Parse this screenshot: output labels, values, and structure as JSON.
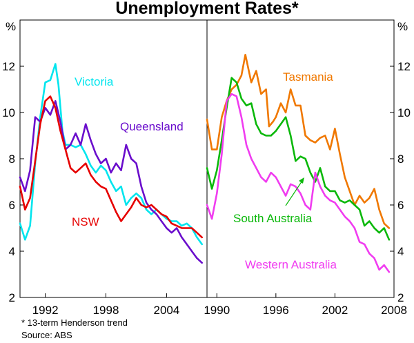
{
  "chart_data": {
    "type": "line",
    "title": "Unemployment Rates*",
    "ylabel_left": "%",
    "ylabel_right": "%",
    "yticks": [
      "2",
      "4",
      "6",
      "8",
      "10",
      "12"
    ],
    "ylim": [
      2,
      14
    ],
    "grid": false,
    "footnote": "*   13-term Henderson trend",
    "source": "Source: ABS",
    "colors": {
      "Victoria": "#00e5ee",
      "Queensland": "#6a0dcc",
      "NSW": "#e60000",
      "Tasmania": "#f07800",
      "South Australia": "#0ab80a",
      "Western Australia": "#f03cf0"
    },
    "panels": [
      {
        "xlim": [
          1989.5,
          2008.0
        ],
        "xticks": [
          "1992",
          "1998",
          "2004"
        ],
        "series": [
          {
            "name": "Victoria",
            "label": "Victoria",
            "label_color": "#00e5ee",
            "x": [
              1989.5,
              1990.0,
              1990.5,
              1991.0,
              1991.5,
              1992.0,
              1992.5,
              1993.0,
              1993.3,
              1993.7,
              1994.0,
              1994.5,
              1995.0,
              1995.5,
              1996.0,
              1996.5,
              1997.0,
              1997.5,
              1998.0,
              1998.5,
              1999.0,
              1999.5,
              2000.0,
              2000.5,
              2001.0,
              2001.5,
              2002.0,
              2002.5,
              2003.0,
              2003.5,
              2004.0,
              2004.5,
              2005.0,
              2005.5,
              2006.0,
              2006.5,
              2007.0,
              2007.5
            ],
            "y": [
              5.2,
              4.5,
              5.1,
              7.8,
              9.8,
              11.3,
              11.4,
              12.1,
              11.2,
              9.2,
              8.6,
              8.6,
              8.5,
              8.6,
              8.2,
              7.7,
              7.4,
              7.7,
              7.5,
              7.0,
              6.6,
              6.8,
              6.0,
              6.3,
              6.5,
              6.3,
              5.8,
              5.6,
              5.8,
              5.6,
              5.4,
              5.3,
              5.3,
              5.1,
              5.2,
              5.0,
              4.6,
              4.3
            ]
          },
          {
            "name": "Queensland",
            "label": "Queensland",
            "label_color": "#6a0dcc",
            "x": [
              1989.5,
              1990.0,
              1990.5,
              1991.0,
              1991.5,
              1992.0,
              1992.5,
              1993.0,
              1993.5,
              1994.0,
              1994.5,
              1995.0,
              1995.5,
              1996.0,
              1996.5,
              1997.0,
              1997.5,
              1998.0,
              1998.5,
              1999.0,
              1999.5,
              2000.0,
              2000.5,
              2001.0,
              2001.5,
              2002.0,
              2002.5,
              2003.0,
              2003.5,
              2004.0,
              2004.5,
              2005.0,
              2005.5,
              2006.0,
              2006.5,
              2007.0,
              2007.5
            ],
            "y": [
              7.2,
              6.6,
              7.5,
              9.8,
              9.6,
              10.2,
              9.9,
              10.5,
              9.6,
              8.4,
              8.6,
              9.1,
              8.6,
              9.5,
              8.8,
              8.2,
              7.8,
              8.0,
              7.4,
              7.8,
              7.5,
              8.6,
              8.0,
              7.8,
              6.8,
              6.1,
              5.8,
              5.6,
              5.3,
              5.0,
              4.8,
              5.0,
              4.6,
              4.3,
              4.0,
              3.7,
              3.5
            ]
          },
          {
            "name": "NSW",
            "label": "NSW",
            "label_color": "#e60000",
            "x": [
              1989.5,
              1990.0,
              1990.5,
              1991.0,
              1991.5,
              1992.0,
              1992.5,
              1993.0,
              1993.5,
              1994.0,
              1994.5,
              1995.0,
              1995.5,
              1996.0,
              1996.5,
              1997.0,
              1997.5,
              1998.0,
              1998.5,
              1999.0,
              1999.5,
              2000.0,
              2000.5,
              2001.0,
              2001.5,
              2002.0,
              2002.5,
              2003.0,
              2003.5,
              2004.0,
              2004.5,
              2005.0,
              2005.5,
              2006.0,
              2006.5,
              2007.0,
              2007.5
            ],
            "y": [
              6.8,
              5.8,
              6.3,
              7.9,
              9.5,
              10.5,
              10.7,
              10.2,
              9.2,
              8.4,
              7.6,
              7.4,
              7.6,
              7.8,
              7.3,
              7.0,
              6.8,
              6.7,
              6.2,
              5.7,
              5.3,
              5.6,
              5.9,
              6.3,
              6.0,
              5.9,
              6.0,
              5.8,
              5.6,
              5.5,
              5.2,
              5.1,
              5.0,
              5.0,
              5.0,
              4.8,
              4.6
            ]
          }
        ]
      },
      {
        "xlim": [
          1989.0,
          2008.0
        ],
        "xticks": [
          "1990",
          "1996",
          "2002",
          "2008"
        ],
        "series": [
          {
            "name": "Tasmania",
            "label": "Tasmania",
            "label_color": "#f07800",
            "x": [
              1989.0,
              1989.5,
              1990.0,
              1990.5,
              1991.0,
              1991.5,
              1992.0,
              1992.5,
              1992.9,
              1993.5,
              1994.0,
              1994.5,
              1995.0,
              1995.3,
              1995.7,
              1996.0,
              1996.5,
              1997.0,
              1997.5,
              1998.0,
              1998.5,
              1999.0,
              1999.5,
              2000.0,
              2000.5,
              2001.0,
              2001.5,
              2002.0,
              2002.5,
              2003.0,
              2003.5,
              2004.0,
              2004.5,
              2005.0,
              2005.5,
              2006.0,
              2006.5,
              2007.0,
              2007.5
            ],
            "y": [
              9.7,
              8.4,
              8.4,
              9.8,
              10.5,
              11.0,
              11.2,
              11.6,
              12.5,
              11.3,
              11.8,
              10.8,
              11.0,
              9.4,
              9.6,
              9.8,
              10.4,
              10.0,
              11.0,
              10.3,
              10.3,
              9.0,
              8.8,
              8.7,
              8.9,
              9.0,
              8.4,
              9.3,
              8.2,
              7.2,
              6.6,
              6.0,
              6.4,
              6.1,
              6.3,
              6.7,
              5.8,
              5.2,
              5.0
            ]
          },
          {
            "name": "South Australia",
            "label": "South Australia",
            "label_color": "#0ab80a",
            "x": [
              1989.0,
              1989.5,
              1990.0,
              1990.5,
              1991.0,
              1991.5,
              1992.0,
              1992.5,
              1993.0,
              1993.5,
              1994.0,
              1994.5,
              1995.0,
              1995.5,
              1996.0,
              1996.5,
              1997.0,
              1997.5,
              1998.0,
              1998.5,
              1999.0,
              1999.5,
              2000.0,
              2000.5,
              2001.0,
              2001.5,
              2002.0,
              2002.5,
              2003.0,
              2003.5,
              2004.0,
              2004.5,
              2005.0,
              2005.5,
              2006.0,
              2006.5,
              2007.0,
              2007.5
            ],
            "y": [
              7.6,
              6.7,
              7.5,
              8.8,
              10.2,
              11.5,
              11.3,
              10.6,
              10.3,
              10.4,
              9.5,
              9.1,
              9.0,
              9.0,
              9.2,
              9.5,
              9.8,
              9.0,
              7.9,
              8.1,
              8.0,
              7.4,
              7.0,
              7.6,
              6.8,
              6.6,
              6.6,
              6.2,
              6.1,
              6.2,
              6.0,
              5.8,
              5.1,
              5.3,
              5.0,
              4.8,
              5.0,
              4.5
            ]
          },
          {
            "name": "Western Australia",
            "label": "Western Australia",
            "label_color": "#f03cf0",
            "x": [
              1989.0,
              1989.5,
              1990.0,
              1990.5,
              1991.0,
              1991.5,
              1992.0,
              1992.5,
              1993.0,
              1993.5,
              1994.0,
              1994.5,
              1995.0,
              1995.5,
              1996.0,
              1996.5,
              1997.0,
              1997.5,
              1998.0,
              1998.5,
              1999.0,
              1999.5,
              2000.0,
              2000.5,
              2001.0,
              2001.5,
              2002.0,
              2002.5,
              2003.0,
              2003.5,
              2004.0,
              2004.5,
              2005.0,
              2005.5,
              2006.0,
              2006.5,
              2007.0,
              2007.5
            ],
            "y": [
              6.0,
              5.4,
              6.5,
              8.2,
              10.5,
              10.8,
              10.7,
              9.8,
              8.6,
              8.0,
              7.6,
              7.2,
              7.0,
              7.4,
              7.2,
              6.8,
              6.4,
              6.9,
              6.8,
              6.5,
              6.0,
              5.8,
              7.4,
              6.8,
              6.4,
              6.2,
              6.1,
              5.8,
              5.5,
              5.3,
              5.0,
              4.4,
              4.3,
              3.9,
              3.7,
              3.2,
              3.4,
              3.1
            ]
          }
        ]
      }
    ]
  }
}
